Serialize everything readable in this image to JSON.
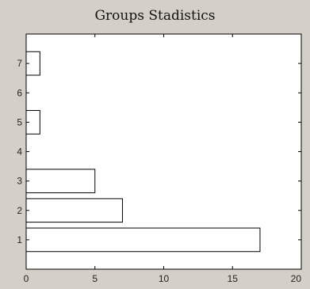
{
  "chart_data": {
    "type": "bar",
    "orientation": "horizontal",
    "title": "Groups Stadistics",
    "xlabel": "",
    "ylabel": "",
    "categories": [
      "1",
      "2",
      "3",
      "4",
      "5",
      "6",
      "7"
    ],
    "values": [
      17,
      7,
      5,
      0,
      1,
      0,
      1
    ],
    "xlim": [
      0,
      20
    ],
    "ylim": [
      0,
      8
    ],
    "xticks": [
      "0",
      "5",
      "10",
      "15",
      "20"
    ],
    "grid": false,
    "colors": {
      "bar_fill": "#ffffff",
      "bar_edge": "#000000",
      "axes_background": "#ffffff",
      "figure_background": "#d4d0c8"
    }
  }
}
